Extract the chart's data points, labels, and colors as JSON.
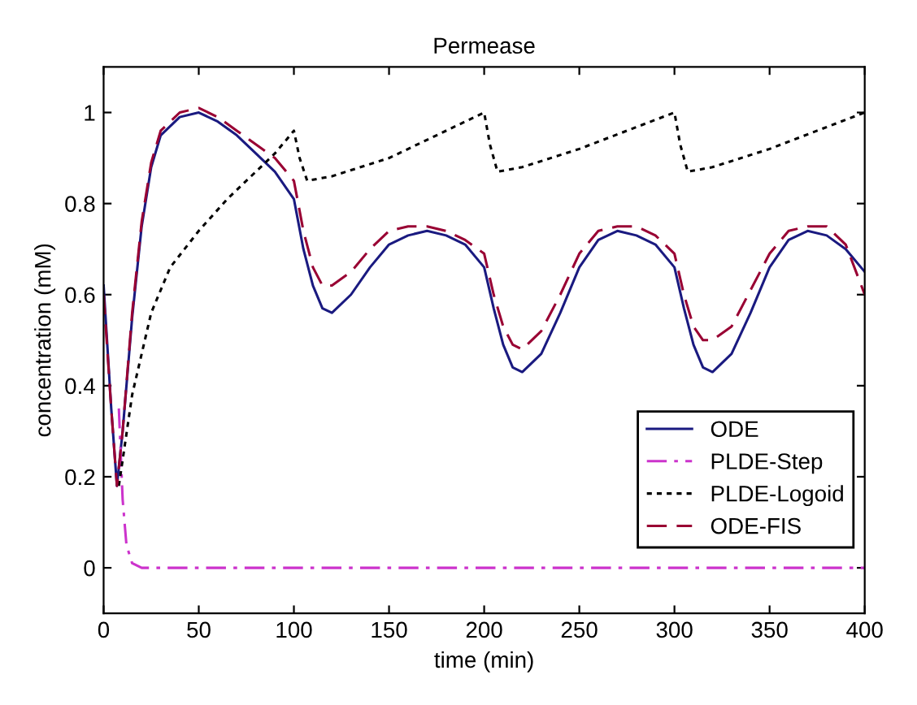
{
  "chart_data": {
    "type": "line",
    "title": "Permease",
    "xlabel": "time (min)",
    "ylabel": "concentration (mM)",
    "xlim": [
      0,
      400
    ],
    "ylim": [
      -0.1,
      1.1
    ],
    "xticks": [
      0,
      50,
      100,
      150,
      200,
      250,
      300,
      350,
      400
    ],
    "yticks": [
      0,
      0.2,
      0.4,
      0.6,
      0.8,
      1
    ],
    "grid": false,
    "legend": "bottom right",
    "series": [
      {
        "name": "ODE",
        "color": "#1a1a80",
        "line_style": "solid",
        "x": [
          0,
          4,
          7,
          10,
          15,
          20,
          25,
          30,
          40,
          50,
          60,
          70,
          80,
          90,
          100,
          105,
          110,
          115,
          120,
          130,
          140,
          150,
          160,
          170,
          180,
          190,
          200,
          205,
          210,
          215,
          220,
          230,
          240,
          250,
          260,
          270,
          280,
          290,
          300,
          305,
          310,
          315,
          320,
          330,
          340,
          350,
          360,
          370,
          380,
          390,
          400
        ],
        "values": [
          0.62,
          0.35,
          0.18,
          0.3,
          0.55,
          0.75,
          0.88,
          0.95,
          0.99,
          1.0,
          0.98,
          0.95,
          0.91,
          0.87,
          0.81,
          0.7,
          0.62,
          0.57,
          0.56,
          0.6,
          0.66,
          0.71,
          0.73,
          0.74,
          0.73,
          0.71,
          0.66,
          0.57,
          0.49,
          0.44,
          0.43,
          0.47,
          0.56,
          0.66,
          0.72,
          0.74,
          0.73,
          0.71,
          0.66,
          0.57,
          0.49,
          0.44,
          0.43,
          0.47,
          0.56,
          0.66,
          0.72,
          0.74,
          0.73,
          0.7,
          0.65
        ]
      },
      {
        "name": "PLDE-Step",
        "color": "#cc33cc",
        "line_style": "dashdot",
        "x": [
          8,
          10,
          12,
          15,
          20,
          100,
          200,
          300,
          400
        ],
        "values": [
          0.35,
          0.15,
          0.05,
          0.01,
          0,
          0,
          0,
          0,
          0
        ]
      },
      {
        "name": "PLDE-Logoid",
        "color": "#000000",
        "line_style": "dotted",
        "x": [
          8,
          15,
          25,
          35,
          50,
          65,
          80,
          90,
          100,
          103,
          107,
          120,
          150,
          175,
          200,
          203,
          207,
          220,
          250,
          275,
          300,
          303,
          307,
          320,
          350,
          375,
          400
        ],
        "values": [
          0.18,
          0.38,
          0.56,
          0.66,
          0.74,
          0.81,
          0.87,
          0.91,
          0.96,
          0.9,
          0.85,
          0.86,
          0.9,
          0.95,
          1.0,
          0.93,
          0.87,
          0.88,
          0.92,
          0.96,
          1.0,
          0.93,
          0.87,
          0.88,
          0.92,
          0.96,
          1.0
        ]
      },
      {
        "name": "ODE-FIS",
        "color": "#990033",
        "line_style": "dashed",
        "x": [
          0,
          4,
          7,
          10,
          15,
          20,
          25,
          30,
          40,
          50,
          60,
          70,
          80,
          90,
          100,
          105,
          110,
          115,
          120,
          130,
          140,
          150,
          160,
          170,
          180,
          190,
          200,
          205,
          210,
          215,
          220,
          230,
          240,
          250,
          260,
          270,
          280,
          290,
          300,
          305,
          310,
          315,
          320,
          330,
          340,
          350,
          360,
          370,
          380,
          390,
          400
        ],
        "values": [
          0.6,
          0.35,
          0.18,
          0.3,
          0.56,
          0.76,
          0.89,
          0.96,
          1.0,
          1.01,
          0.99,
          0.96,
          0.93,
          0.9,
          0.85,
          0.74,
          0.66,
          0.62,
          0.62,
          0.65,
          0.7,
          0.74,
          0.75,
          0.75,
          0.74,
          0.72,
          0.69,
          0.6,
          0.53,
          0.49,
          0.48,
          0.52,
          0.6,
          0.69,
          0.74,
          0.75,
          0.75,
          0.73,
          0.69,
          0.6,
          0.53,
          0.5,
          0.5,
          0.53,
          0.61,
          0.69,
          0.74,
          0.75,
          0.75,
          0.71,
          0.6
        ]
      }
    ]
  }
}
